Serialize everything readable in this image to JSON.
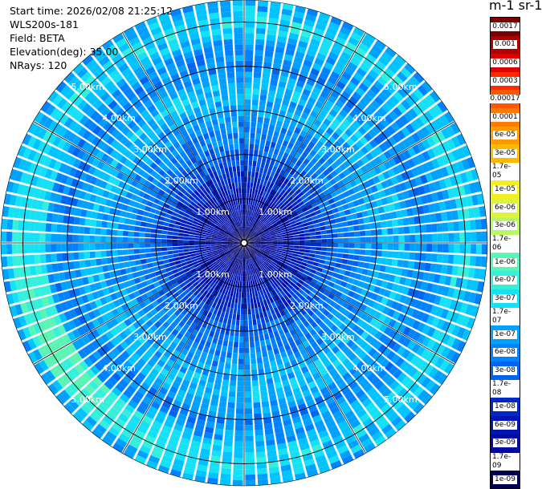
{
  "info": {
    "start_time": "Start time: 2026/02/08 21:25:12",
    "instrument": "WLS200s-181",
    "field": "Field: BETA",
    "elevation": "Elevation(deg): 35.00",
    "nrays": "NRays: 120"
  },
  "colorbar": {
    "title": "m-1 sr-1",
    "levels": [
      {
        "label": "0.0017",
        "color": "#7a0000"
      },
      {
        "label": "0.001",
        "color": "#b00000"
      },
      {
        "label": "0.0006",
        "color": "#dd0000"
      },
      {
        "label": "0.0003",
        "color": "#ff2a00"
      },
      {
        "label": "0.00017",
        "color": "#ff5500"
      },
      {
        "label": "0.0001",
        "color": "#ff7a00"
      },
      {
        "label": "6e-05",
        "color": "#ff9a00"
      },
      {
        "label": "3e-05",
        "color": "#ffb800"
      },
      {
        "label": "1.7e-05",
        "color": "#ffd400"
      },
      {
        "label": "1e-05",
        "color": "#f5ee1e"
      },
      {
        "label": "6e-06",
        "color": "#dcf53c"
      },
      {
        "label": "3e-06",
        "color": "#b8f864"
      },
      {
        "label": "1.7e-06",
        "color": "#8cfa8c"
      },
      {
        "label": "1e-06",
        "color": "#5af5b4"
      },
      {
        "label": "6e-07",
        "color": "#32f0dc"
      },
      {
        "label": "3e-07",
        "color": "#14e1f5"
      },
      {
        "label": "1.7e-07",
        "color": "#00c3ff"
      },
      {
        "label": "1e-07",
        "color": "#00a0ff"
      },
      {
        "label": "6e-08",
        "color": "#0082ff"
      },
      {
        "label": "3e-08",
        "color": "#0064f0"
      },
      {
        "label": "1.7e-08",
        "color": "#0046dc"
      },
      {
        "label": "1e-08",
        "color": "#0028c8"
      },
      {
        "label": "6e-09",
        "color": "#0014b4"
      },
      {
        "label": "3e-09",
        "color": "#000aa0"
      },
      {
        "label": "1.7e-09",
        "color": "#000080"
      },
      {
        "label": "1e-09",
        "color": "#000050"
      }
    ]
  },
  "chart_data": {
    "type": "heatmap",
    "subtype": "polar-ppi",
    "field": "BETA",
    "n_rays": 120,
    "elevation_deg": 35.0,
    "max_range_km": 5.5,
    "range_rings_km": [
      1.0,
      2.0,
      3.0,
      4.0,
      5.0
    ],
    "range_ring_labels": [
      "1.00km",
      "2.00km",
      "3.00km",
      "4.00km",
      "5.00km"
    ],
    "azimuth_grid_lines_deg": [
      0,
      30,
      60,
      90,
      120,
      150,
      180,
      210,
      240,
      270,
      300,
      330
    ],
    "radial_profile": {
      "range_km": [
        0.0,
        0.5,
        1.0,
        1.5,
        2.0,
        2.5,
        3.0,
        3.5,
        4.0,
        4.5,
        5.0,
        5.5
      ],
      "typical_level": [
        "1e-09",
        "3e-09",
        "6e-09",
        "1e-08",
        "3e-08",
        "6e-08",
        "1e-07",
        "1.7e-07",
        "6e-08",
        "1e-07",
        "3e-07",
        "1e-07"
      ]
    },
    "strong_band": {
      "range_km": 4.9,
      "azimuth_deg_from": 180,
      "azimuth_deg_to": 300,
      "level": "1e-06"
    },
    "colorscale_min": "1e-09",
    "colorscale_max": "0.0017"
  }
}
